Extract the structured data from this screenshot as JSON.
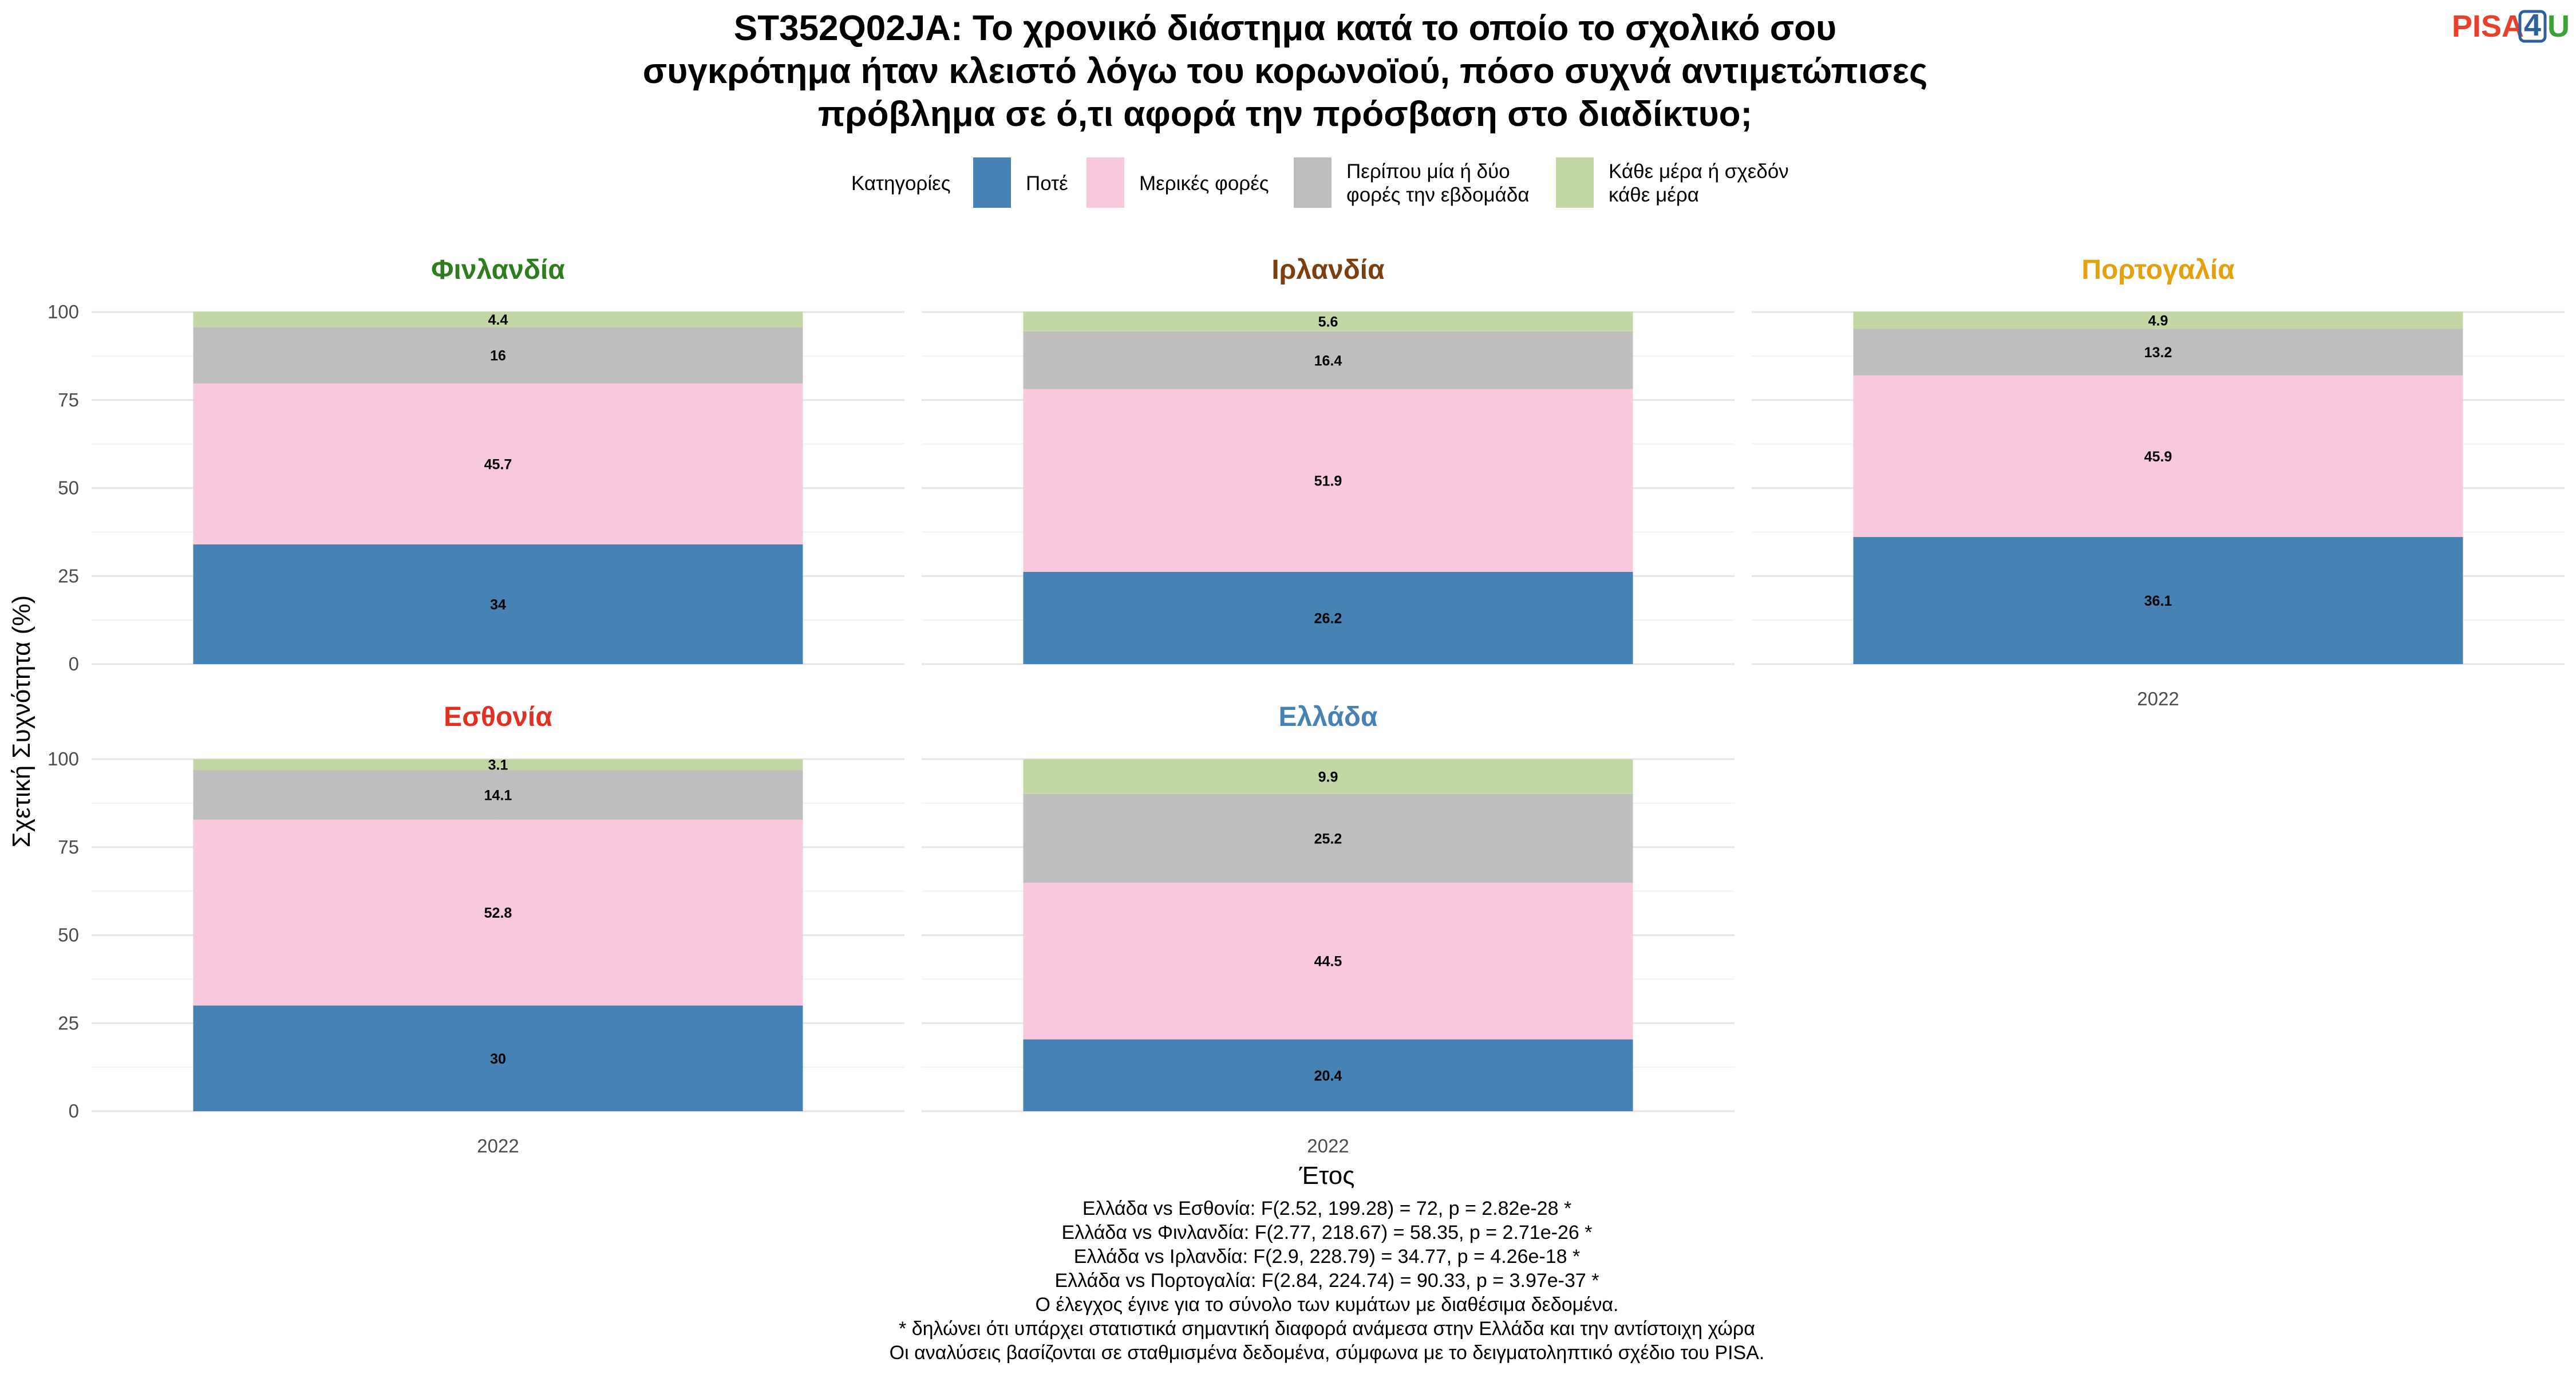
{
  "title_lines": [
    "ST352Q02JA: Το χρονικό διάστημα κατά το οποίο το σχολικό σου",
    "συγκρότημα ήταν κλειστό λόγω του κορωνοϊού, πόσο συχνά αντιμετώπισες",
    "πρόβλημα σε ό,τι αφορά την πρόσβαση στο διαδίκτυο;"
  ],
  "logo": {
    "text_left": "PISA",
    "text_box": "4",
    "text_right": "U",
    "color_left": "#e8402a",
    "color_box": "#2e5f9e",
    "color_right": "#3aa335"
  },
  "legend": {
    "title": "Κατηγορίες",
    "items": [
      {
        "lines": [
          "Ποτέ"
        ],
        "color": "#4682b4"
      },
      {
        "lines": [
          "Μερικές φορές"
        ],
        "color": "#f8c8dc"
      },
      {
        "lines": [
          "Περίπου μία ή δύο",
          "φορές την εβδομάδα"
        ],
        "color": "#bebebe"
      },
      {
        "lines": [
          "Κάθε μέρα ή σχεδόν",
          "κάθε μέρα"
        ],
        "color": "#c3d7a4"
      }
    ]
  },
  "chart_data": {
    "type": "bar",
    "stacked": true,
    "percent": true,
    "ylabel": "Σχετική Συχνότητα (%)",
    "xlabel": "Έτος",
    "ylim": [
      0,
      100
    ],
    "yticks": [
      0,
      25,
      50,
      75,
      100
    ],
    "categories": [
      "2022"
    ],
    "series_names": [
      "Ποτέ",
      "Μερικές φορές",
      "Περίπου μία ή δύο φορές την εβδομάδα",
      "Κάθε μέρα ή σχεδόν κάθε μέρα"
    ],
    "series_colors": [
      "#4682b4",
      "#f8c8dc",
      "#bebebe",
      "#c3d7a4"
    ],
    "facets": [
      {
        "name": "Φινλανδία",
        "color": "#2e7d1e",
        "values": [
          34,
          45.7,
          16,
          4.4
        ],
        "labels": [
          "34",
          "45.7",
          "16",
          "4.4"
        ]
      },
      {
        "name": "Ιρλανδία",
        "color": "#7b3f10",
        "values": [
          26.2,
          51.9,
          16.4,
          5.6
        ],
        "labels": [
          "26.2",
          "51.9",
          "16.4",
          "5.6"
        ]
      },
      {
        "name": "Πορτογαλία",
        "color": "#e5a00e",
        "values": [
          36.1,
          45.9,
          13.2,
          4.9
        ],
        "labels": [
          "36.1",
          "45.9",
          "13.2",
          "4.9"
        ]
      },
      {
        "name": "Εσθονία",
        "color": "#e03024",
        "values": [
          30,
          52.8,
          14.1,
          3.1
        ],
        "labels": [
          "30",
          "52.8",
          "14.1",
          "3.1"
        ]
      },
      {
        "name": "Ελλάδα",
        "color": "#4682b4",
        "values": [
          20.4,
          44.5,
          25.2,
          9.9
        ],
        "labels": [
          "20.4",
          "44.5",
          "25.2",
          "9.9"
        ]
      }
    ]
  },
  "notes": [
    "Ελλάδα vs Εσθονία: F(2.52, 199.28) = 72, p = 2.82e-28 *",
    "Ελλάδα vs Φινλανδία: F(2.77, 218.67) = 58.35, p = 2.71e-26 *",
    "Ελλάδα vs Ιρλανδία: F(2.9, 228.79) = 34.77, p = 4.26e-18 *",
    "Ελλάδα vs Πορτογαλία: F(2.84, 224.74) = 90.33, p = 3.97e-37 *",
    "Ο έλεγχος έγινε για το σύνολο των κυμάτων με διαθέσιμα δεδομένα.",
    "* δηλώνει ότι υπάρχει στατιστικά σημαντική διαφορά ανάμεσα στην Ελλάδα και την αντίστοιχη χώρα",
    "Οι αναλύσεις βασίζονται σε σταθμισμένα δεδομένα, σύμφωνα με το δειγματοληπτικό σχέδιο του PISA."
  ]
}
